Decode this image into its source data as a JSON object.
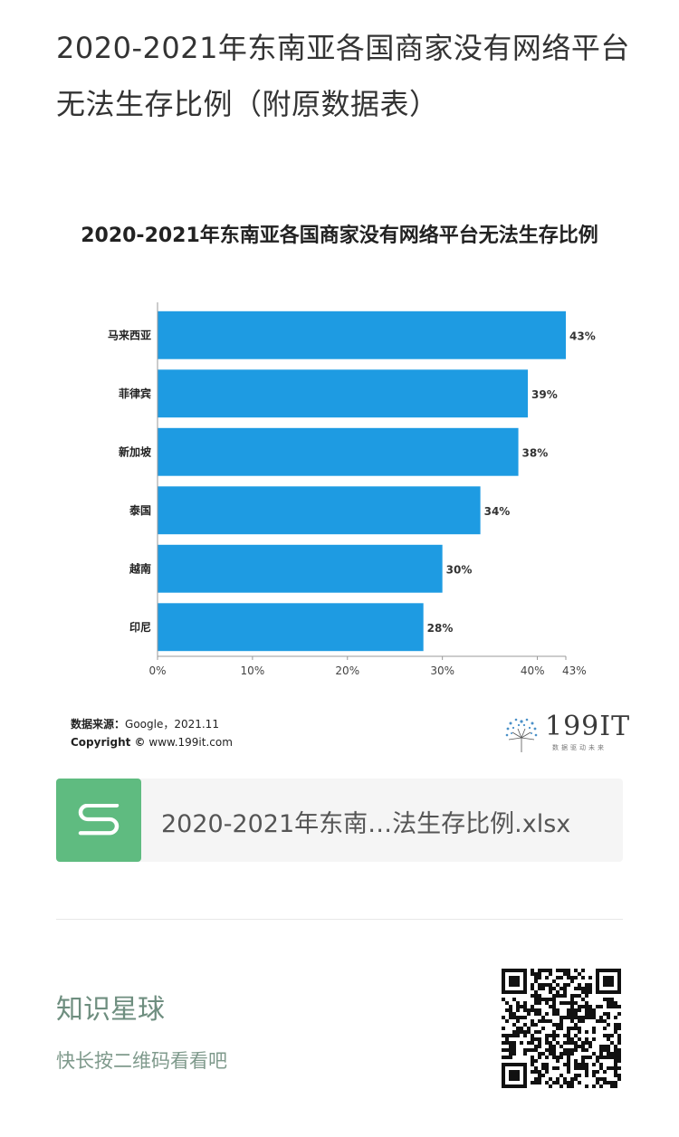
{
  "article": {
    "title": "2020-2021年东南亚各国商家没有网络平台无法生存比例（附原数据表）"
  },
  "chart_data": {
    "type": "bar",
    "orientation": "horizontal",
    "title": "2020-2021年东南亚各国商家没有网络平台无法生存比例",
    "categories": [
      "马来西亚",
      "菲律宾",
      "新加坡",
      "泰国",
      "越南",
      "印尼"
    ],
    "values": [
      43,
      39,
      38,
      34,
      30,
      28
    ],
    "value_labels": [
      "43%",
      "39%",
      "38%",
      "34%",
      "30%",
      "28%"
    ],
    "xticks": [
      0,
      10,
      20,
      30,
      40,
      43
    ],
    "xtick_labels": [
      "0%",
      "10%",
      "20%",
      "30%",
      "40%",
      "43%"
    ],
    "xlim": [
      0,
      43
    ],
    "grid": false,
    "bar_color": "#1e9be2"
  },
  "source": {
    "label": "数据来源：",
    "value": "Google，2021.11",
    "copyright_label": "Copyright ©",
    "copyright_value": "www.199it.com"
  },
  "logo": {
    "text": "199IT",
    "sub": "数据驱动未来"
  },
  "file": {
    "name": "2020-2021年东南…法生存比例.xlsx",
    "icon": "spreadsheet-s-icon",
    "icon_color": "#5fbb80"
  },
  "planet": {
    "title": "知识星球",
    "subtitle": "快长按二维码看看吧"
  }
}
